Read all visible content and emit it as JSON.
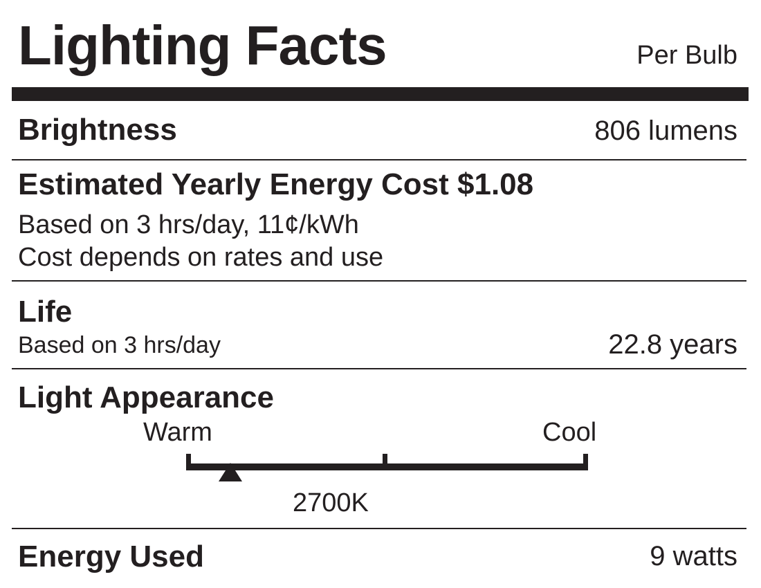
{
  "header": {
    "title": "Lighting Facts",
    "per": "Per Bulb"
  },
  "brightness": {
    "label": "Brightness",
    "value": "806 lumens"
  },
  "energy_cost": {
    "label": "Estimated Yearly Energy Cost $1.08",
    "basis": "Based on 3 hrs/day, 11¢/kWh",
    "note": "Cost depends on rates and use"
  },
  "life": {
    "label": "Life",
    "basis": "Based on 3 hrs/day",
    "value": "22.8 years"
  },
  "light_appearance": {
    "label": "Light Appearance",
    "warm_label": "Warm",
    "cool_label": "Cool",
    "value": "2700K",
    "scale_position_fraction": 0.11
  },
  "energy_used": {
    "label": "Energy Used",
    "value": "9 watts"
  }
}
